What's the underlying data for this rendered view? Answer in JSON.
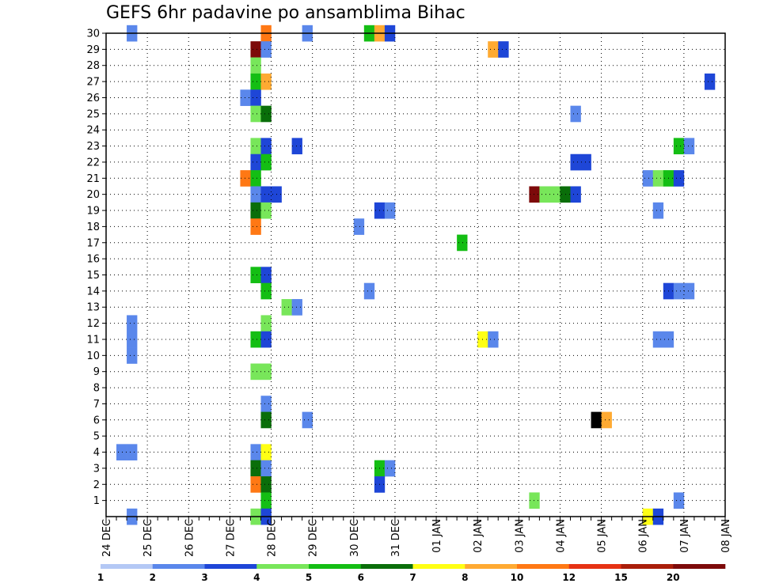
{
  "chart_data": {
    "type": "heatmap",
    "title": "GEFS 6hr padavine po ansamblima Bihac",
    "xlabel": "",
    "ylabel": "",
    "x_tick_labels": [
      "24 DEC",
      "25 DEC",
      "26 DEC",
      "27 DEC",
      "28 DEC",
      "29 DEC",
      "30 DEC",
      "31 DEC",
      "01 JAN",
      "02 JAN",
      "03 JAN",
      "04 JAN",
      "05 JAN",
      "06 JAN",
      "07 JAN",
      "08 JAN"
    ],
    "y_tick_labels": [
      "1",
      "2",
      "3",
      "4",
      "5",
      "6",
      "7",
      "8",
      "9",
      "10",
      "11",
      "12",
      "13",
      "14",
      "15",
      "16",
      "17",
      "18",
      "19",
      "20",
      "21",
      "22",
      "23",
      "24",
      "25",
      "26",
      "27",
      "28",
      "29",
      "30"
    ],
    "x_range_steps": [
      0,
      60
    ],
    "y_range": [
      0,
      30
    ],
    "grid": true,
    "legend_placement": "bottom",
    "legend": {
      "labels": [
        "1",
        "2",
        "3",
        "4",
        "5",
        "6",
        "7",
        "8",
        "10",
        "12",
        "15",
        "20"
      ],
      "colors": [
        "#b4c8f5",
        "#5a87eb",
        "#1e46d7",
        "#78e65a",
        "#14be14",
        "#0a6e0a",
        "#ffff14",
        "#ffaa32",
        "#ff7814",
        "#e63214",
        "#aa1e0a",
        "#7d0a0a"
      ]
    },
    "cells": [
      [
        30,
        2,
        1
      ],
      [
        30,
        15,
        8
      ],
      [
        30,
        19,
        1
      ],
      [
        30,
        25,
        4
      ],
      [
        30,
        26,
        7
      ],
      [
        30,
        27,
        2
      ],
      [
        29,
        14,
        11
      ],
      [
        29,
        15,
        1
      ],
      [
        29,
        37,
        7
      ],
      [
        29,
        38,
        2
      ],
      [
        28,
        14,
        3
      ],
      [
        27,
        14,
        4
      ],
      [
        27,
        15,
        7
      ],
      [
        27,
        58,
        2
      ],
      [
        26,
        13,
        1
      ],
      [
        26,
        14,
        2
      ],
      [
        25,
        14,
        3
      ],
      [
        25,
        15,
        5
      ],
      [
        25,
        45,
        1
      ],
      [
        23,
        14,
        3
      ],
      [
        23,
        15,
        2
      ],
      [
        23,
        18,
        2
      ],
      [
        23,
        55,
        4
      ],
      [
        23,
        56,
        1
      ],
      [
        22,
        14,
        2
      ],
      [
        22,
        15,
        4
      ],
      [
        22,
        45,
        2
      ],
      [
        22,
        46,
        2
      ],
      [
        21,
        13,
        8
      ],
      [
        21,
        14,
        4
      ],
      [
        21,
        52,
        1
      ],
      [
        21,
        53,
        3
      ],
      [
        21,
        54,
        4
      ],
      [
        21,
        55,
        2
      ],
      [
        20,
        14,
        1
      ],
      [
        20,
        15,
        2
      ],
      [
        20,
        16,
        2
      ],
      [
        20,
        41,
        11
      ],
      [
        20,
        42,
        3
      ],
      [
        20,
        43,
        3
      ],
      [
        20,
        44,
        5
      ],
      [
        20,
        45,
        2
      ],
      [
        19,
        14,
        5
      ],
      [
        19,
        15,
        3
      ],
      [
        19,
        26,
        2
      ],
      [
        19,
        27,
        1
      ],
      [
        19,
        53,
        1
      ],
      [
        18,
        14,
        8
      ],
      [
        18,
        24,
        1
      ],
      [
        17,
        34,
        4
      ],
      [
        15,
        14,
        4
      ],
      [
        15,
        15,
        2
      ],
      [
        14,
        15,
        4
      ],
      [
        14,
        25,
        1
      ],
      [
        14,
        54,
        2
      ],
      [
        14,
        55,
        1
      ],
      [
        14,
        56,
        1
      ],
      [
        13,
        17,
        3
      ],
      [
        13,
        18,
        1
      ],
      [
        12,
        2,
        1
      ],
      [
        12,
        15,
        3
      ],
      [
        11,
        2,
        1
      ],
      [
        11,
        14,
        4
      ],
      [
        11,
        15,
        2
      ],
      [
        11,
        36,
        6
      ],
      [
        11,
        37,
        1
      ],
      [
        11,
        53,
        1
      ],
      [
        11,
        54,
        1
      ],
      [
        10,
        2,
        1
      ],
      [
        9,
        14,
        3
      ],
      [
        9,
        15,
        3
      ],
      [
        7,
        15,
        1
      ],
      [
        6,
        15,
        5
      ],
      [
        6,
        19,
        1
      ],
      [
        6,
        47,
        12
      ],
      [
        6,
        48,
        7
      ],
      [
        4,
        1,
        1
      ],
      [
        4,
        2,
        1
      ],
      [
        4,
        14,
        1
      ],
      [
        4,
        15,
        6
      ],
      [
        3,
        14,
        5
      ],
      [
        3,
        15,
        1
      ],
      [
        3,
        26,
        4
      ],
      [
        3,
        27,
        1
      ],
      [
        2,
        14,
        8
      ],
      [
        2,
        15,
        5
      ],
      [
        2,
        26,
        2
      ],
      [
        1,
        15,
        4
      ],
      [
        1,
        41,
        3
      ],
      [
        1,
        55,
        1
      ],
      [
        0,
        2,
        1
      ],
      [
        0,
        14,
        3
      ],
      [
        0,
        15,
        2
      ],
      [
        0,
        52,
        6
      ],
      [
        0,
        53,
        2
      ]
    ]
  }
}
